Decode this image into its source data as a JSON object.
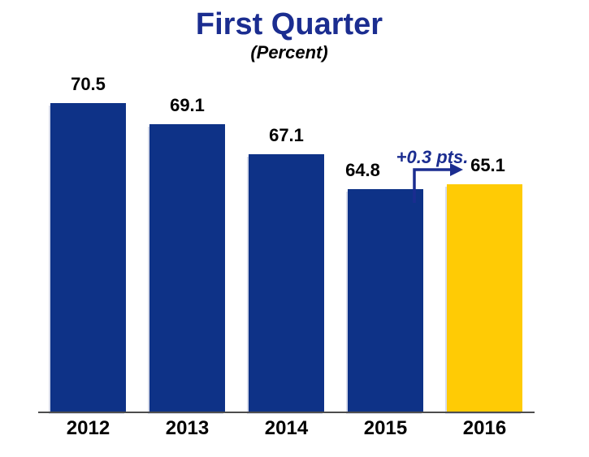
{
  "header": {
    "title": "First Quarter",
    "subtitle": "(Percent)",
    "title_color": "#1b2d90"
  },
  "chart_data": {
    "type": "bar",
    "title": "First Quarter",
    "subtitle": "(Percent)",
    "categories": [
      "2012",
      "2013",
      "2014",
      "2015",
      "2016"
    ],
    "values": [
      70.5,
      69.1,
      67.1,
      64.8,
      65.1
    ],
    "value_labels": [
      "70.5",
      "69.1",
      "67.1",
      "64.8",
      "65.1"
    ],
    "bar_colors": [
      "#0e3287",
      "#0e3287",
      "#0e3287",
      "#0e3287",
      "#ffcb05"
    ],
    "ylim": [
      50,
      75
    ],
    "xlabel": "",
    "ylabel": "",
    "grid": false,
    "legend": false,
    "axis_line_color": "#4d4d4d",
    "label_color": "#000000",
    "annotation": {
      "text": "+0.3 pts.",
      "color": "#1b2d90",
      "from_category": "2015",
      "to_category": "2016"
    }
  }
}
